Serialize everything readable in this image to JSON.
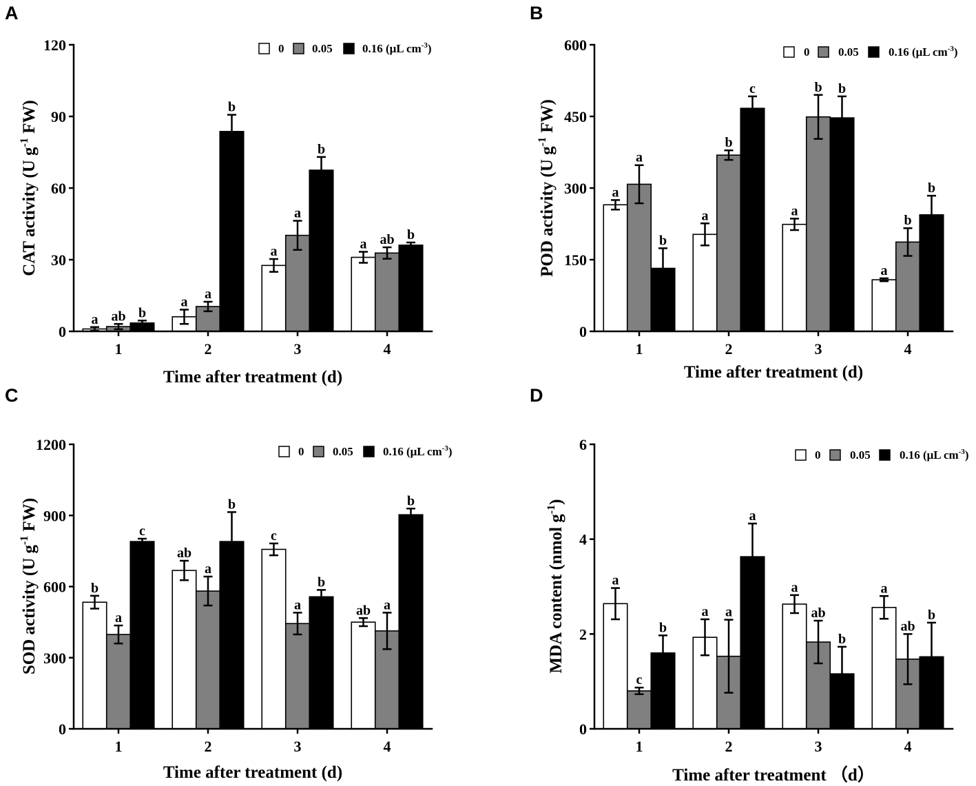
{
  "chart_data": [
    {
      "panel": "A",
      "type": "bar",
      "categories": [
        "1",
        "2",
        "3",
        "4"
      ],
      "series": [
        {
          "name": "0",
          "color": "#ffffff",
          "values": [
            1.0,
            6.1,
            27.6,
            31.0
          ],
          "errors": [
            0.8,
            3.0,
            2.7,
            2.3
          ],
          "letters": [
            "a",
            "a",
            "a",
            "a"
          ]
        },
        {
          "name": "0.05",
          "color": "#808080",
          "values": [
            2.0,
            10.4,
            40.2,
            32.8
          ],
          "errors": [
            1.1,
            2.0,
            6.1,
            2.4
          ],
          "letters": [
            "ab",
            "a",
            "a",
            "ab"
          ]
        },
        {
          "name": "0.16",
          "color": "#000000",
          "values": [
            3.5,
            83.7,
            67.5,
            36.1
          ],
          "errors": [
            1.0,
            7.0,
            5.5,
            1.1
          ],
          "letters": [
            "b",
            "b",
            "b",
            "b"
          ]
        }
      ],
      "legend_unit": {
        "pre": " (μL cm",
        "sup": "-3",
        "post": ")"
      },
      "xlabel": "Time after treatment (d)",
      "ylabel": {
        "pre": "CAT activity (U g",
        "sup": "-1",
        "post": " FW)"
      },
      "ylim": [
        0,
        120
      ],
      "yticks": [
        0,
        30,
        60,
        90,
        120
      ]
    },
    {
      "panel": "B",
      "type": "bar",
      "categories": [
        "1",
        "2",
        "3",
        "4"
      ],
      "series": [
        {
          "name": "0",
          "color": "#ffffff",
          "values": [
            265,
            203,
            224,
            108
          ],
          "errors": [
            10,
            23,
            12,
            3
          ],
          "letters": [
            "a",
            "a",
            "a",
            "a"
          ]
        },
        {
          "name": "0.05",
          "color": "#808080",
          "values": [
            308,
            369,
            449,
            187
          ],
          "errors": [
            40,
            10,
            46,
            29
          ],
          "letters": [
            "a",
            "b",
            "b",
            "b"
          ]
        },
        {
          "name": "0.16",
          "color": "#000000",
          "values": [
            132,
            467,
            447,
            244
          ],
          "errors": [
            42,
            25,
            45,
            40
          ],
          "letters": [
            "b",
            "c",
            "b",
            "b"
          ]
        }
      ],
      "legend_unit": {
        "pre": " (μL cm",
        "sup": "-3",
        "post": ")"
      },
      "xlabel": "Time after treatment (d)",
      "ylabel": {
        "pre": "POD activity (U g",
        "sup": "-1",
        "post": " FW)"
      },
      "ylim": [
        0,
        600
      ],
      "yticks": [
        0,
        150,
        300,
        450,
        600
      ]
    },
    {
      "panel": "C",
      "type": "bar",
      "categories": [
        "1",
        "2",
        "3",
        "4"
      ],
      "series": [
        {
          "name": "0",
          "color": "#ffffff",
          "values": [
            534,
            668,
            757,
            450
          ],
          "errors": [
            27,
            41,
            25,
            17
          ],
          "letters": [
            "b",
            "ab",
            "c",
            "ab"
          ]
        },
        {
          "name": "0.05",
          "color": "#808080",
          "values": [
            398,
            581,
            444,
            413
          ],
          "errors": [
            38,
            61,
            46,
            77
          ],
          "letters": [
            "a",
            "a",
            "a",
            "a"
          ]
        },
        {
          "name": "0.16",
          "color": "#000000",
          "values": [
            790,
            790,
            557,
            903
          ],
          "errors": [
            12,
            124,
            29,
            26
          ],
          "letters": [
            "c",
            "b",
            "b",
            "b"
          ]
        }
      ],
      "legend_unit": {
        "pre": " (μL cm",
        "sup": "-3",
        "post": ")"
      },
      "xlabel": "Time after treatment (d)",
      "ylabel": {
        "pre": "SOD activity (U g",
        "sup": "-1",
        "post": " FW)"
      },
      "ylim": [
        0,
        1200
      ],
      "yticks": [
        0,
        300,
        600,
        900,
        1200
      ]
    },
    {
      "panel": "D",
      "type": "bar",
      "categories": [
        "1",
        "2",
        "3",
        "4"
      ],
      "series": [
        {
          "name": "0",
          "color": "#ffffff",
          "values": [
            2.64,
            1.93,
            2.63,
            2.56
          ],
          "errors": [
            0.33,
            0.38,
            0.19,
            0.24
          ],
          "letters": [
            "a",
            "a",
            "a",
            "a"
          ]
        },
        {
          "name": "0.05",
          "color": "#808080",
          "values": [
            0.8,
            1.53,
            1.83,
            1.47
          ],
          "errors": [
            0.07,
            0.77,
            0.45,
            0.53
          ],
          "letters": [
            "c",
            "a",
            "ab",
            "ab"
          ]
        },
        {
          "name": "0.16",
          "color": "#000000",
          "values": [
            1.6,
            3.63,
            1.16,
            1.52
          ],
          "errors": [
            0.37,
            0.7,
            0.57,
            0.72
          ],
          "letters": [
            "b",
            "a",
            "b",
            "b"
          ]
        }
      ],
      "legend_unit": {
        "pre": " (μL cm",
        "sup": "-3",
        "post": ")"
      },
      "xlabel": "Time after treatment （d）",
      "ylabel": {
        "pre": "MDA content (nmol g",
        "sup": "-1",
        "post": ")"
      },
      "ylim": [
        0,
        6
      ],
      "yticks": [
        0,
        2,
        4,
        6
      ]
    }
  ]
}
